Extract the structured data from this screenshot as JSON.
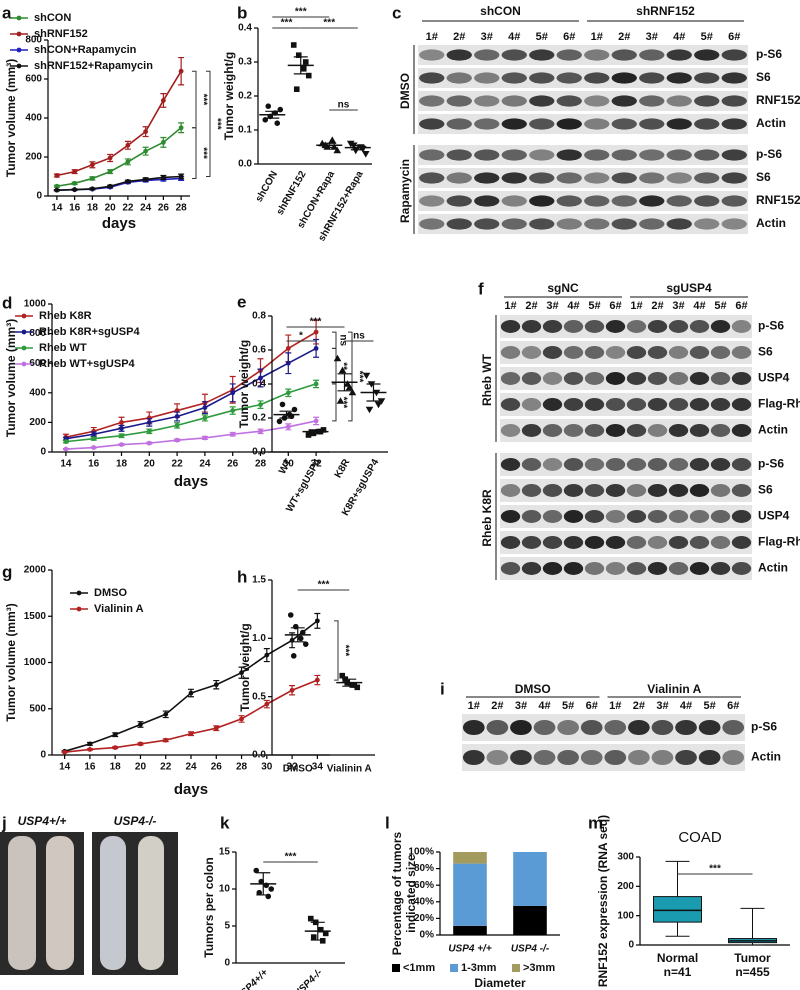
{
  "chart_data": [
    {
      "letter": "a",
      "type": "line",
      "ylabel": "Tumor volume (mm³)",
      "xlabel": "days",
      "x": [
        14,
        16,
        18,
        20,
        22,
        24,
        26,
        28
      ],
      "xlim": [
        13,
        29
      ],
      "xticks": [
        14,
        16,
        18,
        20,
        22,
        24,
        26,
        28
      ],
      "ylim": [
        0,
        800
      ],
      "yticks": [
        0,
        200,
        400,
        600,
        800
      ],
      "series": [
        {
          "name": "shCON",
          "color": "#2e8b2e",
          "values": [
            50,
            65,
            90,
            125,
            175,
            230,
            275,
            350
          ],
          "errors": [
            5,
            6,
            8,
            10,
            15,
            20,
            25,
            25
          ]
        },
        {
          "name": "shRNF152",
          "color": "#a31f1f",
          "values": [
            105,
            125,
            160,
            195,
            260,
            330,
            490,
            640
          ],
          "errors": [
            8,
            10,
            15,
            18,
            20,
            25,
            35,
            70
          ]
        },
        {
          "name": "shCON+Rapamycin",
          "color": "#2020c0",
          "values": [
            30,
            32,
            35,
            45,
            70,
            80,
            85,
            90
          ],
          "errors": [
            3,
            3,
            4,
            5,
            6,
            8,
            8,
            10
          ]
        },
        {
          "name": "shRNF152+Rapamycin",
          "color": "#111111",
          "values": [
            30,
            33,
            37,
            50,
            75,
            85,
            95,
            100
          ],
          "errors": [
            3,
            3,
            4,
            5,
            6,
            8,
            10,
            12
          ]
        }
      ],
      "annotations": [
        "***",
        "***",
        "***"
      ]
    },
    {
      "letter": "b",
      "type": "dot",
      "ylabel": "Tumor weight/g",
      "categories": [
        "shCON",
        "shRNF152",
        "shCON+Rapa",
        "shRNF152+Rapa"
      ],
      "points": [
        [
          0.13,
          0.14,
          0.15,
          0.16,
          0.17,
          0.12
        ],
        [
          0.35,
          0.32,
          0.28,
          0.26,
          0.22,
          0.3
        ],
        [
          0.06,
          0.05,
          0.07,
          0.04,
          0.055,
          0.05
        ],
        [
          0.06,
          0.04,
          0.05,
          0.03,
          0.055,
          0.045
        ]
      ],
      "means": [
        0.145,
        0.29,
        0.055,
        0.048
      ],
      "errors": [
        0.01,
        0.025,
        0.006,
        0.006
      ],
      "ylim": [
        0,
        0.4
      ],
      "yticks": [
        {
          "value": 0,
          "label": "0.0"
        },
        0.1,
        0.2,
        0.3,
        0.4
      ],
      "annotations": [
        "***",
        "***",
        "***",
        "ns"
      ]
    },
    {
      "letter": "d",
      "type": "line",
      "ylabel": "Tumor volume (mm³)",
      "xlabel": "days",
      "x": [
        14,
        16,
        18,
        20,
        22,
        24,
        26,
        28,
        30,
        32
      ],
      "xlim": [
        13,
        33
      ],
      "xticks": [
        14,
        16,
        18,
        20,
        22,
        24,
        26,
        28,
        30,
        32
      ],
      "ylim": [
        0,
        1000
      ],
      "yticks": [
        0,
        200,
        400,
        600,
        800,
        1000
      ],
      "series": [
        {
          "name": "Rheb K8R",
          "color": "#b22222",
          "values": [
            100,
            140,
            200,
            230,
            280,
            330,
            420,
            550,
            700,
            810
          ],
          "errors": [
            20,
            25,
            35,
            40,
            45,
            60,
            90,
            80,
            90,
            80
          ]
        },
        {
          "name": "Rheb K8R+sgUSP4",
          "color": "#1a1a8c",
          "values": [
            90,
            120,
            160,
            200,
            240,
            300,
            400,
            500,
            600,
            700
          ],
          "errors": [
            10,
            15,
            20,
            25,
            30,
            40,
            60,
            60,
            70,
            60
          ]
        },
        {
          "name": "Rheb WT",
          "color": "#2e9b3e",
          "values": [
            70,
            90,
            110,
            140,
            180,
            230,
            280,
            320,
            400,
            460
          ],
          "errors": [
            8,
            10,
            12,
            15,
            18,
            20,
            25,
            25,
            25,
            25
          ]
        },
        {
          "name": "Rheb WT+sgUSP4",
          "color": "#c070e0",
          "values": [
            20,
            30,
            50,
            60,
            80,
            95,
            120,
            140,
            170,
            210
          ],
          "errors": [
            3,
            4,
            5,
            6,
            8,
            10,
            12,
            15,
            20,
            25
          ]
        }
      ],
      "annotations": [
        "ns",
        "**",
        "***",
        "***"
      ]
    },
    {
      "letter": "e",
      "type": "dot",
      "ylabel": "Tumor weight/g",
      "categories": [
        "WT",
        "WT+sgUSP4",
        "K8R",
        "K8R+sgUSP4"
      ],
      "points": [
        [
          0.18,
          0.2,
          0.22,
          0.25,
          0.28,
          0.21
        ],
        [
          0.1,
          0.11,
          0.12,
          0.13,
          0.11,
          0.12
        ],
        [
          0.55,
          0.48,
          0.4,
          0.35,
          0.3,
          0.38
        ],
        [
          0.45,
          0.4,
          0.35,
          0.3,
          0.25,
          0.28
        ]
      ],
      "means": [
        0.22,
        0.12,
        0.41,
        0.35
      ],
      "errors": [
        0.02,
        0.01,
        0.05,
        0.05
      ],
      "ylim": [
        0,
        0.8
      ],
      "yticks": [
        {
          "value": 0,
          "label": "0.0"
        },
        0.2,
        0.4,
        0.6,
        0.8
      ],
      "annotations": [
        "***",
        "*",
        "ns"
      ]
    },
    {
      "letter": "g",
      "type": "line",
      "ylabel": "Tumor volume (mm³)",
      "xlabel": "days",
      "x": [
        14,
        16,
        18,
        20,
        22,
        24,
        26,
        28,
        30,
        32,
        34
      ],
      "xlim": [
        13,
        35
      ],
      "xticks": [
        14,
        16,
        18,
        20,
        22,
        24,
        26,
        28,
        30,
        32,
        34
      ],
      "ylim": [
        0,
        2000
      ],
      "yticks": [
        0,
        500,
        1000,
        1500,
        2000
      ],
      "series": [
        {
          "name": "DMSO",
          "color": "#111111",
          "values": [
            40,
            120,
            220,
            330,
            440,
            670,
            760,
            890,
            1080,
            1240,
            1450
          ],
          "errors": [
            5,
            15,
            20,
            30,
            35,
            40,
            45,
            60,
            70,
            80,
            80
          ]
        },
        {
          "name": "Vialinin A",
          "color": "#b22222",
          "values": [
            30,
            60,
            80,
            120,
            160,
            230,
            290,
            390,
            550,
            700,
            810
          ],
          "errors": [
            5,
            8,
            10,
            12,
            15,
            20,
            25,
            35,
            40,
            50,
            50
          ]
        }
      ],
      "annotations": [
        "***"
      ]
    },
    {
      "letter": "h",
      "type": "dot",
      "ylabel": "Tumor weight/g",
      "categories": [
        "DMSO",
        "Vialinin A"
      ],
      "points": [
        [
          1.2,
          1.1,
          1.0,
          0.95,
          0.85,
          1.05
        ],
        [
          0.68,
          0.62,
          0.6,
          0.58,
          0.65,
          0.6
        ]
      ],
      "means": [
        1.03,
        0.62
      ],
      "errors": [
        0.06,
        0.03
      ],
      "ylim": [
        0,
        1.5
      ],
      "yticks": [
        {
          "value": 0,
          "label": "0.0"
        },
        0.5,
        {
          "value": 1,
          "label": "1.0"
        },
        1.5
      ],
      "annotations": [
        "***"
      ]
    },
    {
      "letter": "k",
      "type": "dot",
      "ylabel": "Tumors per colon",
      "categories": [
        "USP4+/+",
        "USP4-/-"
      ],
      "points": [
        [
          12.5,
          11,
          10.5,
          10,
          9.5,
          9
        ],
        [
          6,
          5.5,
          4.5,
          4,
          3.5,
          3
        ]
      ],
      "means": [
        10.7,
        4.3
      ],
      "errors": [
        1.5,
        1.2
      ],
      "ylim": [
        0,
        15
      ],
      "yticks": [
        0,
        5,
        10,
        15
      ],
      "annotations": [
        "***"
      ]
    },
    {
      "letter": "l",
      "type": "stacked_bar",
      "ylabel": [
        "Percentage of tumors",
        "indicated size"
      ],
      "xlabel": "Diameter",
      "categories": [
        "USP4 +/+",
        "USP4 -/-"
      ],
      "series": [
        {
          "name": "<1mm",
          "color": "#000000",
          "values": [
            11,
            35
          ]
        },
        {
          "name": "1-3mm",
          "color": "#5b9bd5",
          "values": [
            75,
            65
          ]
        },
        {
          "name": ">3mm",
          "color": "#a39a5e",
          "values": [
            14,
            0
          ]
        }
      ],
      "ylim": [
        0,
        100
      ],
      "yticks": [
        {
          "value": 0,
          "label": "0%"
        },
        {
          "value": 20,
          "label": "20%"
        },
        {
          "value": 40,
          "label": "40%"
        },
        {
          "value": 60,
          "label": "60%"
        },
        {
          "value": 80,
          "label": "80%"
        },
        {
          "value": 100,
          "label": "100%"
        }
      ]
    },
    {
      "letter": "m",
      "type": "box",
      "title": "COAD",
      "ylabel": "RNF152 expression (RNA seq)",
      "categories": [
        "Normal",
        "Tumor"
      ],
      "n_labels": [
        "n=41",
        "n=455"
      ],
      "color": "#1a9bb0",
      "min": [
        30,
        0
      ],
      "q1": [
        78,
        8
      ],
      "median": [
        118,
        14
      ],
      "q3": [
        165,
        22
      ],
      "max": [
        285,
        125
      ],
      "ylim": [
        0,
        300
      ],
      "yticks": [
        0,
        100,
        200,
        300
      ],
      "annotations": [
        "***"
      ]
    }
  ],
  "blots": [
    {
      "letter": "c",
      "groups": [
        "shCON",
        "shRNF152"
      ],
      "lanes": [
        "1#",
        "2#",
        "3#",
        "4#",
        "5#",
        "6#"
      ],
      "sections": [
        {
          "label": "DMSO",
          "rows": [
            "p-S6",
            "S6",
            "RNF152",
            "Actin"
          ]
        },
        {
          "label": "Rapamycin",
          "rows": [
            "p-S6",
            "S6",
            "RNF152",
            "Actin"
          ]
        }
      ]
    },
    {
      "letter": "f",
      "groups": [
        "sgNC",
        "sgUSP4"
      ],
      "lanes": [
        "1#",
        "2#",
        "3#",
        "4#",
        "5#",
        "6#"
      ],
      "sections": [
        {
          "label": "Rheb WT",
          "rows": [
            "p-S6",
            "S6",
            "USP4",
            "Flag-Rheb",
            "Actin"
          ]
        },
        {
          "label": "Rheb K8R",
          "rows": [
            "p-S6",
            "S6",
            "USP4",
            "Flag-Rheb",
            "Actin"
          ]
        }
      ]
    },
    {
      "letter": "i",
      "groups": [
        "DMSO",
        "Vialinin A"
      ],
      "lanes": [
        "1#",
        "2#",
        "3#",
        "4#",
        "5#",
        "6#"
      ],
      "sections": [
        {
          "rows": [
            "p-S6",
            "Actin"
          ]
        }
      ]
    }
  ],
  "photo": {
    "letter": "j",
    "labels": [
      "USP4+/+",
      "USP4-/-"
    ]
  }
}
